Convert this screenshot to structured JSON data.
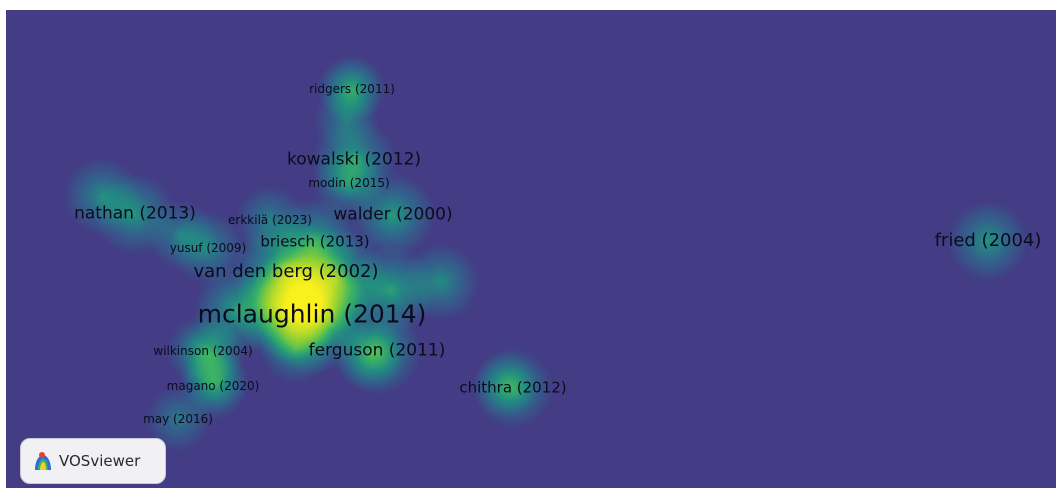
{
  "app": {
    "logo_text": "VOSviewer"
  },
  "colors": {
    "background": "#443c85",
    "label": "#0c0b1e"
  },
  "nodes": [
    {
      "label": "ridgers (2011)",
      "density": 0.35
    },
    {
      "label": "kowalski (2012)",
      "density": 0.55
    },
    {
      "label": "modin (2015)",
      "density": 0.4
    },
    {
      "label": "nathan (2013)",
      "density": 0.5
    },
    {
      "label": "erkkilä (2023)",
      "density": 0.35
    },
    {
      "label": "walder (2000)",
      "density": 0.55
    },
    {
      "label": "yusuf (2009)",
      "density": 0.4
    },
    {
      "label": "briesch (2013)",
      "density": 0.6
    },
    {
      "label": "van den berg (2002)",
      "density": 0.85
    },
    {
      "label": "mclaughlin (2014)",
      "density": 1.0
    },
    {
      "label": "wilkinson (2004)",
      "density": 0.4
    },
    {
      "label": "ferguson (2011)",
      "density": 0.6
    },
    {
      "label": "magano (2020)",
      "density": 0.35
    },
    {
      "label": "may (2016)",
      "density": 0.3
    },
    {
      "label": "chithra (2012)",
      "density": 0.5
    },
    {
      "label": "fried (2004)",
      "density": 0.5
    }
  ]
}
